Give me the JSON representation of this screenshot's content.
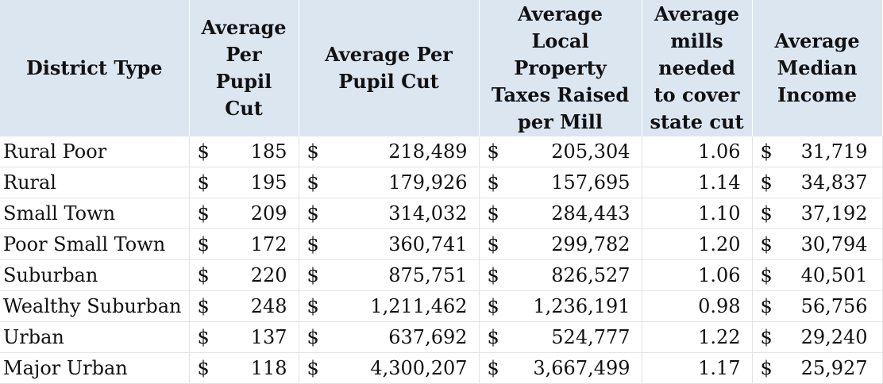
{
  "table": {
    "headers": {
      "district_type": "District Type",
      "per_pupil_cut": [
        "Average",
        "Per",
        "Pupil",
        "Cut"
      ],
      "avg_per_pupil_cut": [
        "Average Per",
        "Pupil Cut"
      ],
      "property_taxes": [
        "Average",
        "Local",
        "Property",
        "Taxes Raised",
        "per Mill"
      ],
      "mills_needed": [
        "Average",
        "mills",
        "needed",
        "to cover",
        "state cut"
      ],
      "median_income": [
        "Average",
        "Median",
        "Income"
      ]
    },
    "currency_symbol": "$",
    "rows": [
      {
        "type": "Rural Poor",
        "per_pupil": "185",
        "avg_cut": "218,489",
        "tax": "205,304",
        "mills": "1.06",
        "income": "31,719"
      },
      {
        "type": "Rural",
        "per_pupil": "195",
        "avg_cut": "179,926",
        "tax": "157,695",
        "mills": "1.14",
        "income": "34,837"
      },
      {
        "type": "Small Town",
        "per_pupil": "209",
        "avg_cut": "314,032",
        "tax": "284,443",
        "mills": "1.10",
        "income": "37,192"
      },
      {
        "type": "Poor Small Town",
        "per_pupil": "172",
        "avg_cut": "360,741",
        "tax": "299,782",
        "mills": "1.20",
        "income": "30,794"
      },
      {
        "type": "Suburban",
        "per_pupil": "220",
        "avg_cut": "875,751",
        "tax": "826,527",
        "mills": "1.06",
        "income": "40,501"
      },
      {
        "type": "Wealthy Suburban",
        "per_pupil": "248",
        "avg_cut": "1,211,462",
        "tax": "1,236,191",
        "mills": "0.98",
        "income": "56,756"
      },
      {
        "type": "Urban",
        "per_pupil": "137",
        "avg_cut": "637,692",
        "tax": "524,777",
        "mills": "1.22",
        "income": "29,240"
      },
      {
        "type": "Major Urban",
        "per_pupil": "118",
        "avg_cut": "4,300,207",
        "tax": "3,667,499",
        "mills": "1.17",
        "income": "25,927"
      }
    ],
    "header_background": "#dce6f1"
  }
}
